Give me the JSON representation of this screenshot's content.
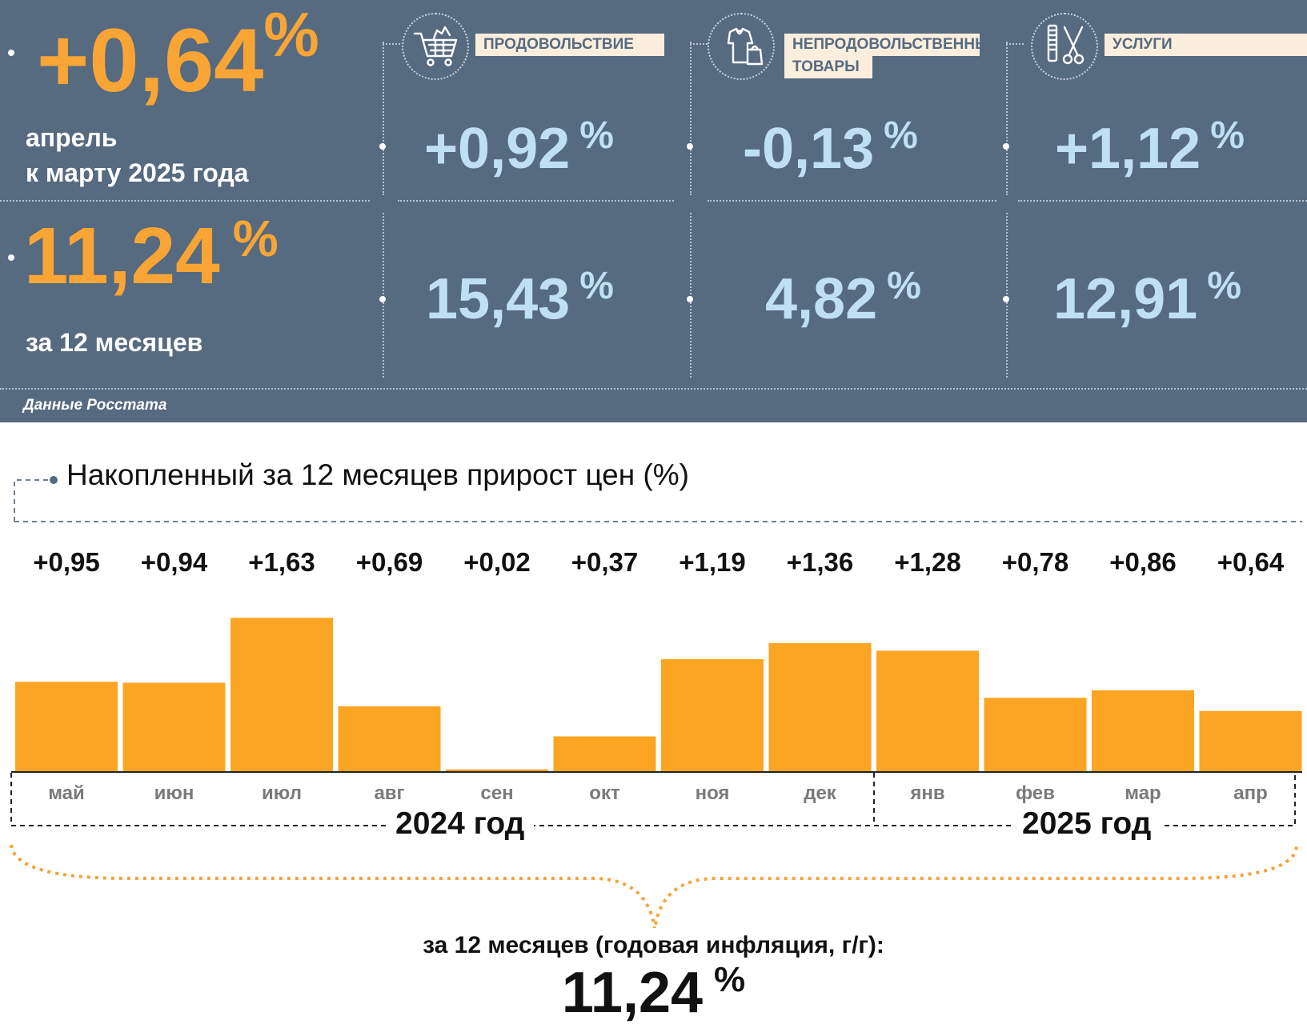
{
  "summary": {
    "monthly_value": "+0,64",
    "percent_sign": "%",
    "monthly_caption_line1": "апрель",
    "monthly_caption_line2": "к марту 2025 года",
    "annual_value": "11,24",
    "annual_caption": "за 12 месяцев",
    "source": "Данные Росстата"
  },
  "categories": [
    {
      "label_line1": "ПРОДОВОЛЬСТВИЕ",
      "label_line2": "",
      "icon": "shopping-cart-icon",
      "monthly": "+0,92",
      "annual": "15,43"
    },
    {
      "label_line1": "НЕПРОДОВОЛЬСТВЕННЫЕ",
      "label_line2": "ТОВАРЫ",
      "icon": "clothing-icon",
      "monthly": "-0,13",
      "annual": "4,82"
    },
    {
      "label_line1": "УСЛУГИ",
      "label_line2": "",
      "icon": "comb-scissors-icon",
      "monthly": "+1,12",
      "annual": "12,91"
    }
  ],
  "colors": {
    "panel": "#566a80",
    "accent": "#f9a535",
    "light_blue": "#bfe0f3",
    "bar": "#fca522"
  },
  "chart_data": {
    "type": "bar",
    "title": "Накопленный за 12 месяцев прирост цен (%)",
    "categories": [
      "май",
      "июн",
      "июл",
      "авг",
      "сен",
      "окт",
      "ноя",
      "дек",
      "янв",
      "фев",
      "мар",
      "апр"
    ],
    "values": [
      0.95,
      0.94,
      1.63,
      0.69,
      0.02,
      0.37,
      1.19,
      1.36,
      1.28,
      0.78,
      0.86,
      0.64
    ],
    "value_labels": [
      "+0,95",
      "+0,94",
      "+1,63",
      "+0,69",
      "+0,02",
      "+0,37",
      "+1,19",
      "+1,36",
      "+1,28",
      "+0,78",
      "+0,86",
      "+0,64"
    ],
    "groups": [
      {
        "label": "2024 год",
        "count": 8
      },
      {
        "label": "2025 год",
        "count": 4
      }
    ],
    "ylim": [
      0,
      1.7
    ],
    "grid": false,
    "total_caption": "за 12 месяцев (годовая инфляция, г/г):",
    "total_value": "11,24",
    "total_percent_sign": "%"
  }
}
